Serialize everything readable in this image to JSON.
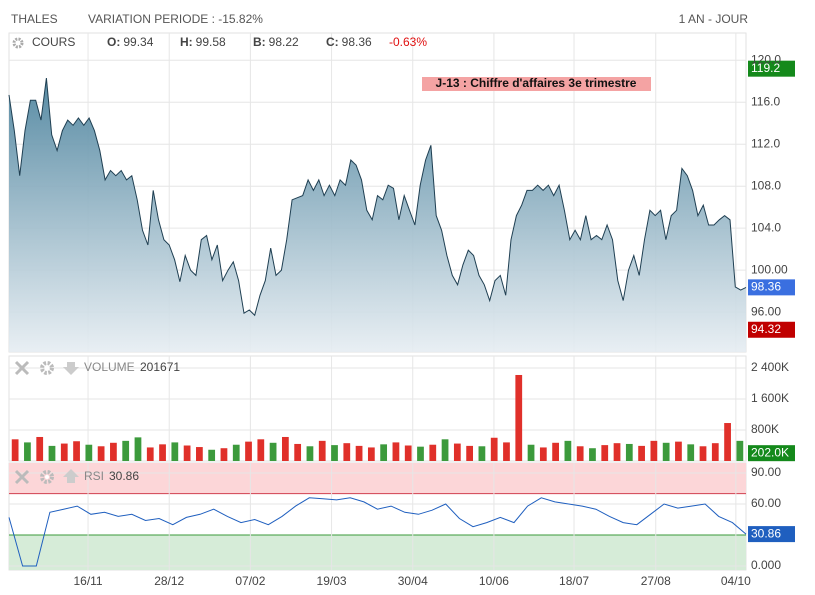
{
  "header": {
    "symbol": "THALES",
    "variation": "VARIATION PERIODE : -15.82%",
    "range": "1 AN - JOUR"
  },
  "chart_data": [
    {
      "type": "area",
      "legend_label": "COURS",
      "ohlc": [
        {
          "key": "O:",
          "value": 99.34
        },
        {
          "key": "H:",
          "value": 99.58
        },
        {
          "key": "B:",
          "value": 98.22
        },
        {
          "key": "C:",
          "value": 98.36
        }
      ],
      "change": "-0.63%",
      "annotation": "J-13 : Chiffre d'affaires 3e trimestre",
      "values": [
        116.7,
        113.3,
        109.0,
        113.3,
        116.2,
        116.2,
        114.3,
        118.3,
        112.9,
        111.4,
        113.3,
        114.3,
        113.8,
        114.5,
        113.8,
        114.5,
        113.3,
        111.4,
        108.6,
        109.5,
        109.0,
        109.5,
        108.6,
        109.0,
        106.7,
        103.8,
        102.4,
        107.6,
        104.8,
        102.9,
        102.4,
        101.0,
        98.9,
        101.4,
        100.0,
        99.5,
        102.9,
        103.3,
        101.0,
        102.4,
        99.0,
        100.0,
        100.8,
        99.0,
        95.9,
        96.2,
        95.7,
        97.6,
        99.0,
        102.1,
        99.5,
        100.0,
        102.9,
        106.7,
        106.9,
        107.1,
        108.6,
        107.6,
        108.6,
        107.1,
        108.1,
        107.1,
        108.6,
        108.1,
        110.5,
        110.0,
        108.6,
        105.7,
        104.8,
        107.1,
        106.7,
        108.1,
        107.8,
        104.8,
        107.1,
        105.7,
        104.3,
        108.1,
        110.5,
        111.9,
        105.2,
        103.8,
        101.4,
        99.5,
        98.6,
        100.5,
        101.9,
        101.4,
        99.5,
        98.6,
        97.1,
        99.0,
        99.5,
        97.6,
        102.9,
        105.2,
        106.2,
        107.6,
        107.6,
        108.1,
        107.6,
        108.1,
        107.1,
        108.1,
        105.7,
        102.9,
        103.8,
        102.9,
        105.2,
        102.9,
        103.3,
        102.9,
        104.3,
        102.9,
        99.0,
        97.1,
        100.0,
        101.4,
        99.5,
        102.9,
        105.7,
        105.2,
        105.7,
        102.9,
        105.2,
        105.7,
        109.7,
        109.0,
        107.6,
        105.2,
        106.2,
        104.3,
        104.3,
        104.8,
        105.2,
        104.8,
        98.4,
        98.1,
        98.36
      ],
      "color": "#1f3f52",
      "fill": "#5b8fa8",
      "xlim": [
        0,
        138
      ],
      "xticks": [
        {
          "value": 14.8,
          "label": "16/11"
        },
        {
          "value": 30.0,
          "label": "28/12"
        },
        {
          "value": 45.2,
          "label": "07/02"
        },
        {
          "value": 60.4,
          "label": "19/03"
        },
        {
          "value": 75.6,
          "label": "30/04"
        },
        {
          "value": 90.8,
          "label": "10/06"
        },
        {
          "value": 105.8,
          "label": "18/07"
        },
        {
          "value": 121.1,
          "label": "27/08"
        },
        {
          "value": 136.1,
          "label": "04/10"
        }
      ],
      "ylim": [
        92.2,
        122.6
      ],
      "yticks": [
        {
          "value": 96,
          "label": "96.00"
        },
        {
          "value": 100,
          "label": "100.00"
        },
        {
          "value": 104,
          "label": "104.0"
        },
        {
          "value": 108,
          "label": "108.0"
        },
        {
          "value": 112,
          "label": "112.0"
        },
        {
          "value": 116,
          "label": "116.0"
        },
        {
          "value": 120,
          "label": "120.0"
        }
      ],
      "grid": true,
      "badges": [
        {
          "value": 119.2,
          "color": "#14891b"
        },
        {
          "value": 98.36,
          "color": "#3a6fe0"
        },
        {
          "value": 94.32,
          "color": "#c00000"
        }
      ]
    },
    {
      "type": "bar",
      "legend_label": "VOLUME",
      "legend_value": 201671,
      "values": [
        560000,
        480000,
        620000,
        390000,
        450000,
        510000,
        420000,
        380000,
        470000,
        520000,
        610000,
        350000,
        430000,
        480000,
        400000,
        360000,
        290000,
        330000,
        420000,
        500000,
        560000,
        470000,
        620000,
        440000,
        380000,
        520000,
        410000,
        460000,
        390000,
        350000,
        430000,
        480000,
        400000,
        370000,
        420000,
        560000,
        450000,
        390000,
        380000,
        600000,
        480000,
        2220000,
        420000,
        350000,
        470000,
        520000,
        380000,
        330000,
        410000,
        460000,
        440000,
        390000,
        520000,
        470000,
        500000,
        430000,
        380000,
        460000,
        980000,
        520000
      ],
      "colors": [
        "#e0302a",
        "#3c9a3c",
        "#e0302a",
        "#3c9a3c",
        "#e0302a",
        "#e0302a",
        "#3c9a3c",
        "#e0302a",
        "#e0302a",
        "#3c9a3c",
        "#3c9a3c",
        "#e0302a",
        "#e0302a",
        "#3c9a3c",
        "#e0302a",
        "#e0302a",
        "#3c9a3c",
        "#e0302a",
        "#3c9a3c",
        "#e0302a",
        "#e0302a",
        "#3c9a3c",
        "#e0302a",
        "#e0302a",
        "#3c9a3c",
        "#e0302a",
        "#3c9a3c",
        "#e0302a",
        "#e0302a",
        "#e0302a",
        "#3c9a3c",
        "#e0302a",
        "#e0302a",
        "#3c9a3c",
        "#e0302a",
        "#3c9a3c",
        "#e0302a",
        "#e0302a",
        "#3c9a3c",
        "#e0302a",
        "#e0302a",
        "#e0302a",
        "#3c9a3c",
        "#e0302a",
        "#e0302a",
        "#3c9a3c",
        "#e0302a",
        "#3c9a3c",
        "#e0302a",
        "#e0302a",
        "#3c9a3c",
        "#e0302a",
        "#e0302a",
        "#3c9a3c",
        "#e0302a",
        "#3c9a3c",
        "#e0302a",
        "#e0302a",
        "#e0302a",
        "#3c9a3c"
      ],
      "xlim": [
        -0.5,
        59.5
      ],
      "ylim": [
        0,
        2710000
      ],
      "yticks": [
        {
          "value": 800000,
          "label": "800K"
        },
        {
          "value": 1600000,
          "label": "1 600K"
        },
        {
          "value": 2400000,
          "label": "2 400K"
        }
      ],
      "grid": true,
      "badge": {
        "value": 202000,
        "label": "202.0K",
        "color": "#14891b"
      }
    },
    {
      "type": "line",
      "legend_label": "RSI",
      "values": [
        47,
        0,
        0,
        52,
        55,
        58,
        50,
        52,
        48,
        50,
        44,
        46,
        40,
        47,
        50,
        55,
        48,
        42,
        45,
        40,
        48,
        58,
        66,
        65,
        64,
        66,
        62,
        55,
        58,
        52,
        50,
        54,
        60,
        46,
        38,
        42,
        47,
        42,
        58,
        66,
        62,
        60,
        58,
        55,
        48,
        42,
        40,
        50,
        60,
        56,
        58,
        60,
        48,
        42,
        30.86
      ],
      "color": "#1f5fbf",
      "xlim": [
        0,
        54
      ],
      "ylim": [
        -3.9,
        99.7
      ],
      "yticks": [
        {
          "value": 0,
          "label": "0.000"
        },
        {
          "value": 60,
          "label": "60.00"
        },
        {
          "value": 90,
          "label": "90.00"
        }
      ],
      "grid": true,
      "bands": [
        {
          "above": 70,
          "color": "#fcd6d8",
          "edge": "#d04050"
        },
        {
          "below": 30,
          "color": "#d6ecd8",
          "edge": "#3a9a3a"
        }
      ],
      "badge": {
        "value": 30.86,
        "color": "#1f5fbf"
      }
    }
  ]
}
